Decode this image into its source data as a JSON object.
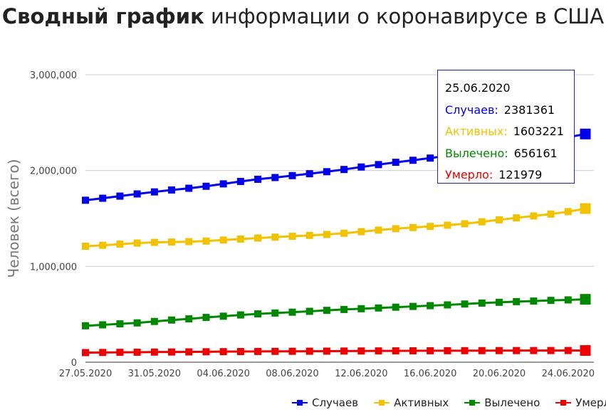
{
  "title": {
    "bold": "Сводный график",
    "rest": " информации о коронавирусе в США"
  },
  "chart_data": {
    "type": "line",
    "ylabel": "Человек (всего)",
    "xlabel": "",
    "ylim": [
      0,
      3000000
    ],
    "yticks": [
      "0",
      "1,000,000",
      "2,000,000",
      "3,000,000"
    ],
    "xticks": [
      "27.05.2020",
      "31.05.2020",
      "04.06.2020",
      "08.06.2020",
      "12.06.2020",
      "16.06.2020",
      "20.06.2020",
      "24.06.2020"
    ],
    "x": [
      "27.05.2020",
      "28.05.2020",
      "29.05.2020",
      "30.05.2020",
      "31.05.2020",
      "01.06.2020",
      "02.06.2020",
      "03.06.2020",
      "04.06.2020",
      "05.06.2020",
      "06.06.2020",
      "07.06.2020",
      "08.06.2020",
      "09.06.2020",
      "10.06.2020",
      "11.06.2020",
      "12.06.2020",
      "13.06.2020",
      "14.06.2020",
      "15.06.2020",
      "16.06.2020",
      "17.06.2020",
      "18.06.2020",
      "19.06.2020",
      "20.06.2020",
      "21.06.2020",
      "22.06.2020",
      "23.06.2020",
      "24.06.2020",
      "25.06.2020"
    ],
    "grid": true,
    "legend_position": "bottom-right",
    "series": [
      {
        "name": "Случаев",
        "color": "#0000ee",
        "values": [
          1690000,
          1711000,
          1733000,
          1756000,
          1777000,
          1797000,
          1815000,
          1836000,
          1861000,
          1886000,
          1909000,
          1927000,
          1947000,
          1967000,
          1988000,
          2011000,
          2037000,
          2062000,
          2086000,
          2107000,
          2130000,
          2154000,
          2180000,
          2210000,
          2240000,
          2265000,
          2290000,
          2315000,
          2347000,
          2381361
        ]
      },
      {
        "name": "Активных",
        "color": "#f2c200",
        "values": [
          1210000,
          1220000,
          1232000,
          1243000,
          1250000,
          1254000,
          1258000,
          1264000,
          1275000,
          1285000,
          1296000,
          1305000,
          1314000,
          1323000,
          1333000,
          1346000,
          1362000,
          1378000,
          1393000,
          1405000,
          1417000,
          1430000,
          1445000,
          1465000,
          1486000,
          1506000,
          1526000,
          1546000,
          1571000,
          1603221
        ]
      },
      {
        "name": "Вылечено",
        "color": "#008800",
        "values": [
          380000,
          390000,
          400000,
          410000,
          425000,
          440000,
          452000,
          467000,
          480000,
          493000,
          504000,
          513000,
          522000,
          531000,
          541000,
          550000,
          558000,
          566000,
          574000,
          582000,
          590000,
          598000,
          607000,
          617000,
          625000,
          632000,
          638000,
          645000,
          650000,
          656161
        ]
      },
      {
        "name": "Умерло",
        "color": "#ee0000",
        "values": [
          100000,
          101500,
          103000,
          104300,
          105500,
          106500,
          107600,
          108900,
          110000,
          111000,
          112000,
          113000,
          113700,
          114500,
          115300,
          116300,
          117000,
          117700,
          118300,
          118800,
          119300,
          119800,
          120200,
          120600,
          121000,
          121200,
          121400,
          121600,
          121800,
          121979
        ]
      }
    ],
    "tooltip": {
      "date": "25.06.2020",
      "rows": [
        {
          "label": "Случаев:",
          "value": "2381361",
          "color": "#0000ee"
        },
        {
          "label": "Активных:",
          "value": "1603221",
          "color": "#f2c200"
        },
        {
          "label": "Вылечено:",
          "value": "656161",
          "color": "#008800"
        },
        {
          "label": "Умерло:",
          "value": "121979",
          "color": "#ee0000"
        }
      ]
    }
  }
}
